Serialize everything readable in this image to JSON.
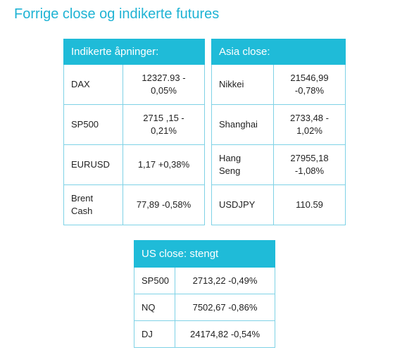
{
  "page": {
    "title": "Forrige close og indikerte futures"
  },
  "indicated_openings": {
    "header": "Indikerte åpninger:",
    "rows": [
      {
        "name": "DAX",
        "value": "12327.93 -\n0,05%"
      },
      {
        "name": "SP500",
        "value": "2715 ,15 -\n0,21%"
      },
      {
        "name": "EURUSD",
        "value": "1,17 +0,38%"
      },
      {
        "name": "Brent\nCash",
        "value": "77,89 -0,58%"
      }
    ]
  },
  "asia_close": {
    "header": "Asia close:",
    "rows": [
      {
        "name": "Nikkei",
        "value": "21546,99\n-0,78%"
      },
      {
        "name": "Shanghai",
        "value": "2733,48 -\n1,02%"
      },
      {
        "name": "Hang\nSeng",
        "value": "27955,18\n-1,08%"
      },
      {
        "name": "USDJPY",
        "value": "110.59"
      }
    ]
  },
  "us_close": {
    "header": "US close: stengt",
    "rows": [
      {
        "name": "SP500",
        "value": "2713,22 -0,49%"
      },
      {
        "name": "NQ",
        "value": "7502,67 -0,86%"
      },
      {
        "name": "DJ",
        "value": "24174,82 -0,54%"
      }
    ]
  },
  "colors": {
    "title": "#1fb3d4",
    "header_bg": "#1fbbd8",
    "header_text": "#ffffff",
    "border": "#7fd2e6"
  }
}
